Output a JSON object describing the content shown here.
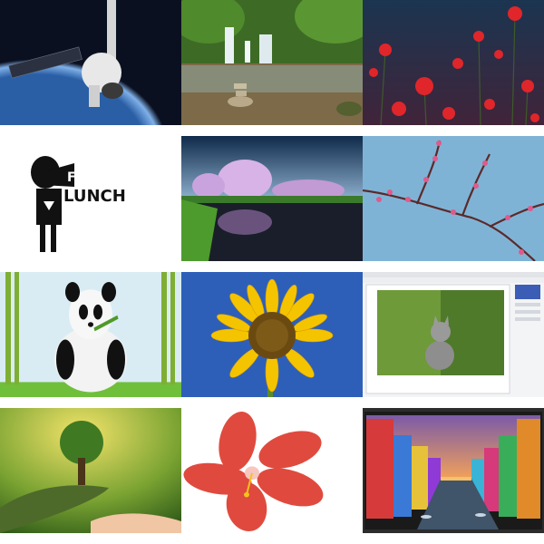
{
  "images": [
    {
      "name": "space-capsule"
    },
    {
      "name": "waterfall"
    },
    {
      "name": "red-poppies"
    },
    {
      "name": "free-lunch-logo",
      "logo_text": "FREE LUNCH"
    },
    {
      "name": "purple-trees-lake"
    },
    {
      "name": "pink-blossom-branch"
    },
    {
      "name": "panda-bamboo"
    },
    {
      "name": "sunflower"
    },
    {
      "name": "kitten-in-editor"
    },
    {
      "name": "tree-in-hands"
    },
    {
      "name": "red-hibiscus"
    },
    {
      "name": "colorful-canal-town"
    }
  ]
}
